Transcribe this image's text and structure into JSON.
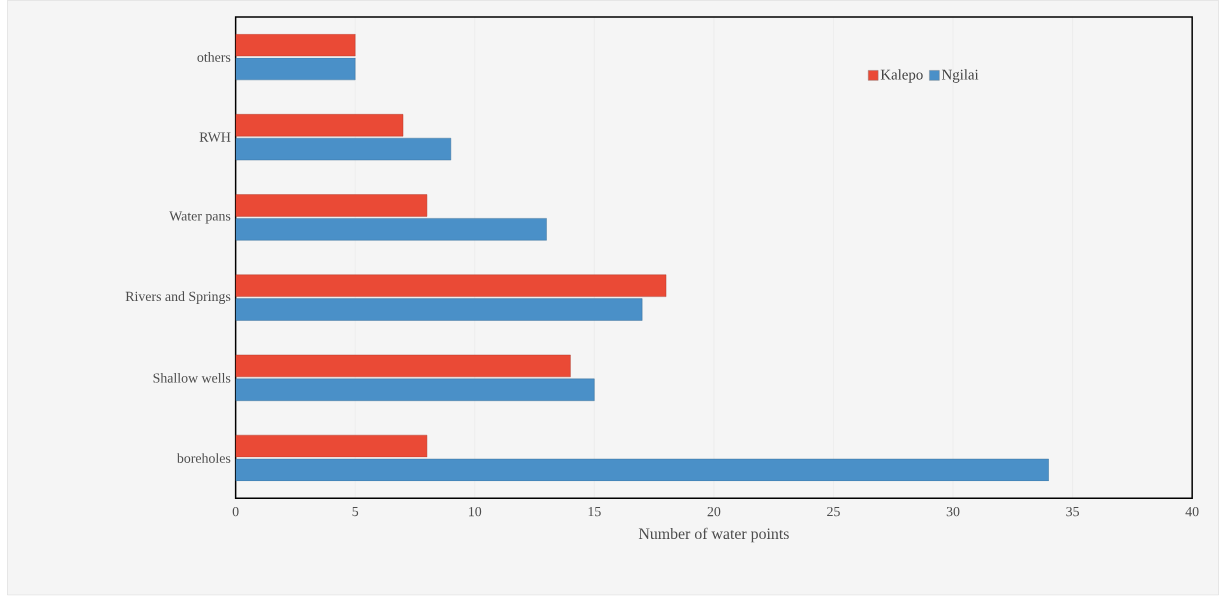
{
  "chart_data": {
    "type": "bar",
    "orientation": "horizontal",
    "xlabel": "Number of water points",
    "categories": [
      "others",
      "RWH",
      "Water pans",
      "Rivers and Springs",
      "Shallow wells",
      "boreholes"
    ],
    "series": [
      {
        "name": "Kalepo",
        "color": "#ea4a36",
        "values": [
          5,
          7,
          8,
          18,
          14,
          8
        ]
      },
      {
        "name": "Ngilai",
        "color": "#4a90c8",
        "values": [
          5,
          9,
          13,
          17,
          15,
          34
        ]
      }
    ],
    "xlim": [
      0,
      40
    ],
    "xticks": [
      0,
      5,
      10,
      15,
      20,
      25,
      30,
      35,
      40
    ],
    "grid": "x",
    "legend": "top right"
  }
}
